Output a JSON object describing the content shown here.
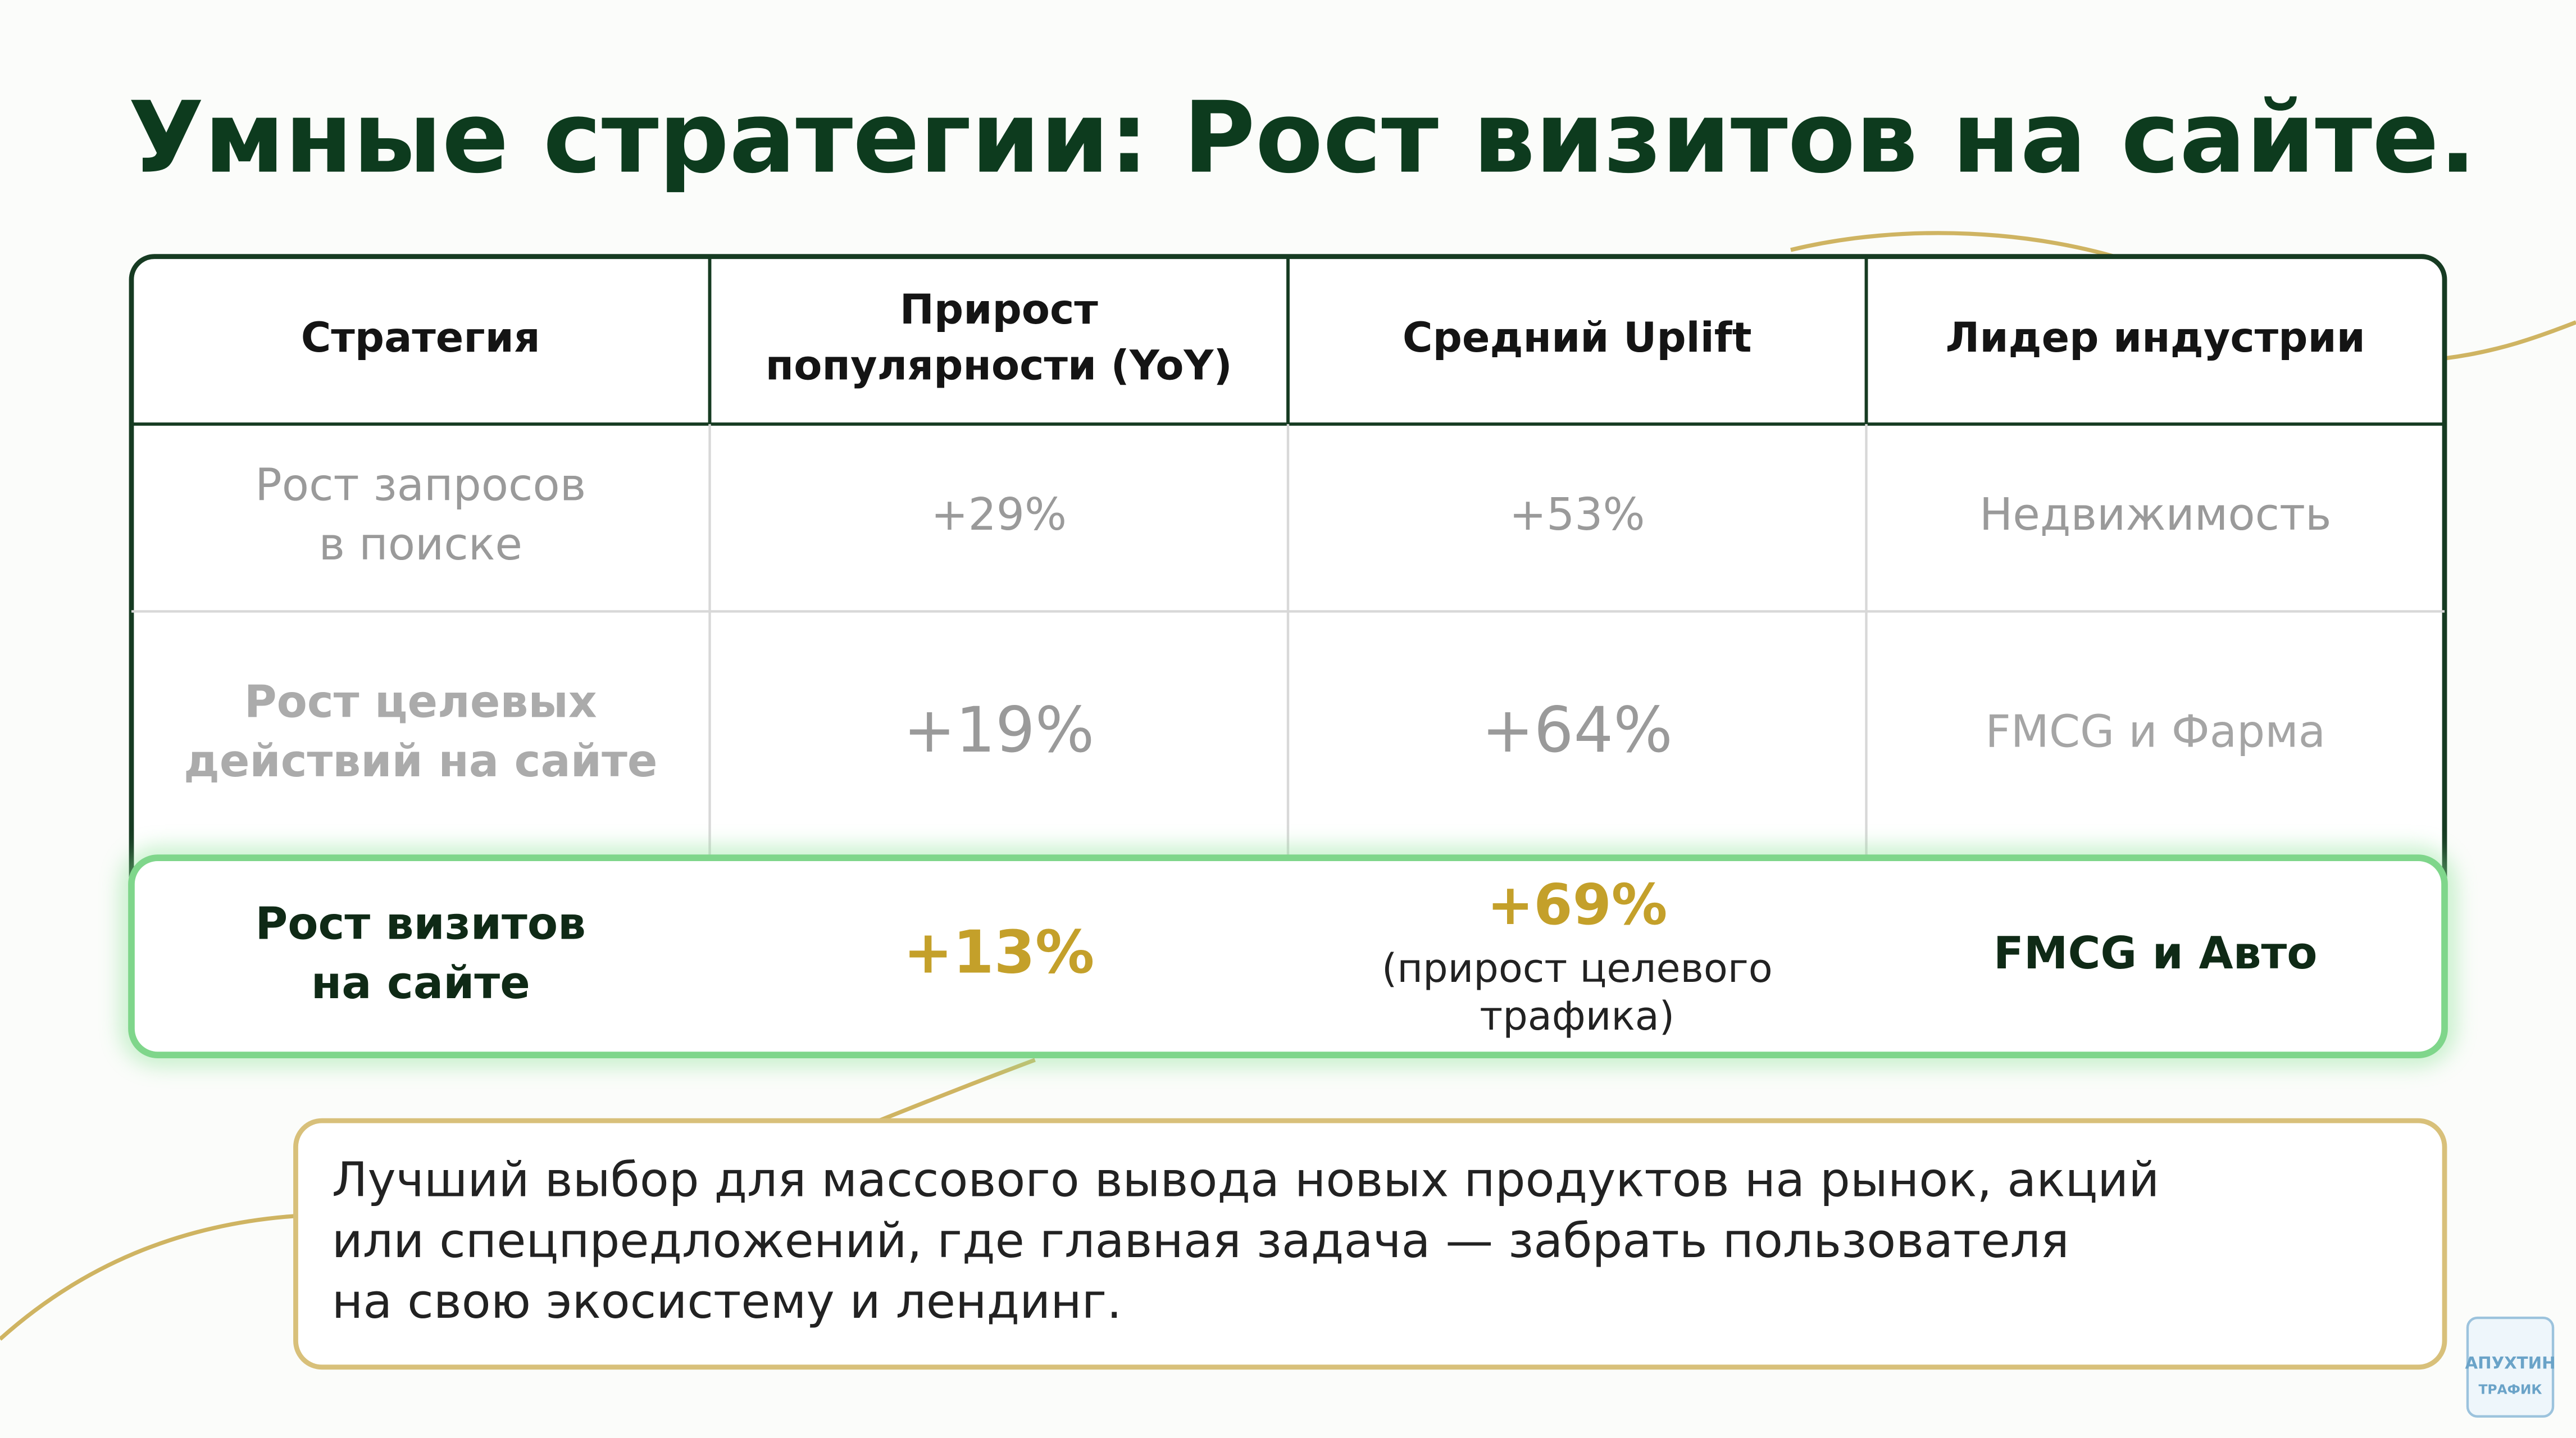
{
  "title": "Умные стратегии: Рост визитов на сайте.",
  "table": {
    "header": [
      [
        "Стратегия"
      ],
      [
        "Прирост",
        "популярности (YoY)"
      ],
      [
        "Средний Uplift"
      ],
      [
        "Лидер индустрии"
      ]
    ],
    "rows": [
      [
        [
          "Рост запросов",
          "в поиске"
        ],
        [
          "+29%"
        ],
        [
          "+53%"
        ],
        [
          "Недвижимость"
        ]
      ],
      [
        [
          "Рост целевых",
          "действий на сайте"
        ],
        [
          "+19%"
        ],
        [
          "+64%"
        ],
        [
          "FMCG и Фарма"
        ]
      ],
      [
        [
          "Рост визитов",
          "на сайте"
        ],
        [
          "+13%"
        ],
        [
          "+69%",
          "(прирост целевого",
          "трафика)"
        ],
        [
          "FMCG и Авто"
        ]
      ]
    ]
  },
  "note": [
    "Лучший выбор для массового вывода новых продуктов на рынок, акций",
    "или спецпредложений, где главная задача — забрать пользователя",
    "на свою экосистему и лендинг."
  ],
  "logo": [
    "АПУХТИН",
    "ТРАФИК"
  ]
}
